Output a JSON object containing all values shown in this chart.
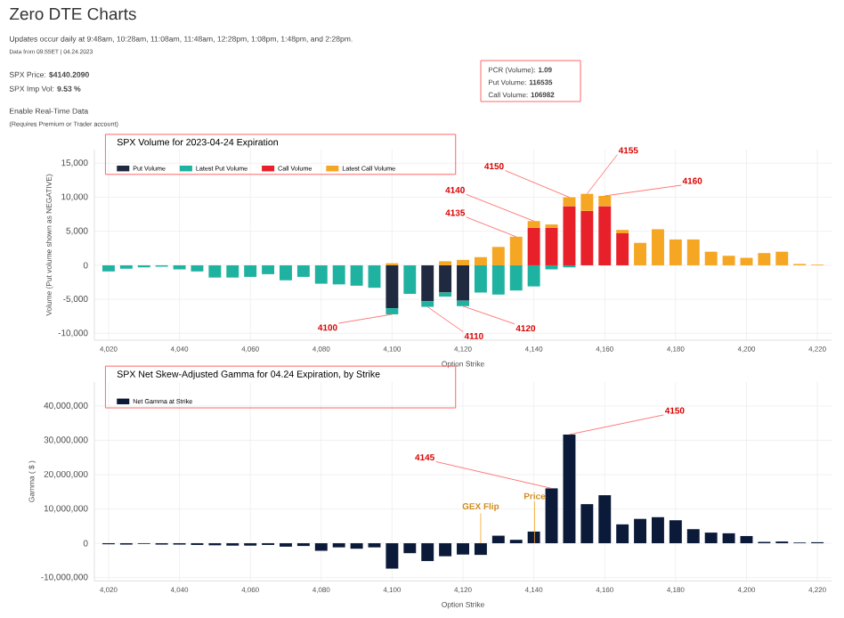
{
  "chart_data": [
    {
      "type": "other",
      "title": "Zero DTE Charts",
      "annotations": [
        "Updates occur daily at 9:48am, 10:28am, 11:08am, 11:48am, 12:28pm, 1:08pm, 1:48pm, and 2:28pm.",
        "Data from 09:55ET | 04.24.2023",
        "SPX Price: **$4140.2090**",
        "SPX Imp Vol: **9.53 %**",
        "Enable Real-Time Data",
        "(Requires Premium or Trader account)",
        "PCR (Volume): **1.09**",
        "Put Volume: **116535**",
        "Call Volume: **106982**"
      ]
    },
    {
      "type": "bar",
      "stacked": true,
      "title": "SPX Volume for 2023-04-24 Expiration",
      "xlabel": "Option Strike",
      "ylabel": "Volume (Put volume shown as NEGATIVE)",
      "x": [
        4020,
        4025,
        4030,
        4035,
        4040,
        4045,
        4050,
        4055,
        4060,
        4065,
        4070,
        4075,
        4080,
        4085,
        4090,
        4095,
        4100,
        4105,
        4110,
        4115,
        4120,
        4125,
        4130,
        4135,
        4140,
        4145,
        4150,
        4155,
        4160,
        4165,
        4170,
        4175,
        4180,
        4185,
        4190,
        4195,
        4200,
        4205,
        4210,
        4215,
        4220
      ],
      "series": [
        {
          "name": "Put Volume",
          "color": "#1f2940",
          "values": [
            null,
            null,
            null,
            null,
            null,
            null,
            null,
            null,
            null,
            null,
            null,
            null,
            null,
            null,
            null,
            null,
            -6300,
            null,
            -5300,
            -4000,
            -5200,
            null,
            null,
            null,
            null,
            null,
            null,
            null,
            null,
            null,
            null,
            null,
            null,
            null,
            null,
            null,
            null,
            null,
            null,
            null,
            null
          ]
        },
        {
          "name": "Latest Put Volume",
          "color": "#20b2a0",
          "values": [
            -900,
            -500,
            -300,
            -200,
            -600,
            -900,
            -1800,
            -1800,
            -1700,
            -1300,
            -2200,
            -1700,
            -2700,
            -2800,
            -3000,
            -3300,
            -900,
            -4200,
            -800,
            -600,
            -800,
            -4000,
            -4300,
            -3700,
            -3100,
            -600,
            -300,
            null,
            null,
            null,
            null,
            null,
            null,
            null,
            null,
            null,
            null,
            null,
            null,
            null,
            null
          ]
        },
        {
          "name": "Call Volume",
          "color": "#e8202a",
          "values": [
            null,
            null,
            null,
            null,
            null,
            null,
            null,
            null,
            null,
            null,
            null,
            null,
            null,
            null,
            null,
            null,
            null,
            null,
            null,
            null,
            null,
            null,
            null,
            null,
            5500,
            5500,
            8700,
            8000,
            8700,
            4700,
            null,
            null,
            null,
            null,
            null,
            null,
            null,
            null,
            null,
            null,
            null
          ]
        },
        {
          "name": "Latest Call Volume",
          "color": "#f5a623",
          "values": [
            null,
            null,
            null,
            null,
            null,
            null,
            null,
            null,
            null,
            null,
            null,
            null,
            null,
            null,
            null,
            null,
            300,
            null,
            null,
            600,
            800,
            1200,
            2700,
            4200,
            1000,
            500,
            1300,
            2500,
            1500,
            500,
            3300,
            5300,
            3800,
            3800,
            2000,
            1400,
            1100,
            1800,
            2000,
            200,
            100
          ]
        }
      ],
      "xlim": [
        4016,
        4224
      ],
      "ylim": [
        -11000,
        17000
      ],
      "xticks": [
        {
          "value": 4020,
          "label": "4,020"
        },
        {
          "value": 4040,
          "label": "4,040"
        },
        {
          "value": 4060,
          "label": "4,060"
        },
        {
          "value": 4080,
          "label": "4,080"
        },
        {
          "value": 4100,
          "label": "4,100"
        },
        {
          "value": 4120,
          "label": "4,120"
        },
        {
          "value": 4140,
          "label": "4,140"
        },
        {
          "value": 4160,
          "label": "4,160"
        },
        {
          "value": 4180,
          "label": "4,180"
        },
        {
          "value": 4200,
          "label": "4,200"
        },
        {
          "value": 4220,
          "label": "4,220"
        }
      ],
      "yticks": [
        {
          "value": -10000,
          "label": "-10,000"
        },
        {
          "value": -5000,
          "label": "-5,000"
        },
        0,
        {
          "value": 5000,
          "label": "5,000"
        },
        {
          "value": 10000,
          "label": "10,000"
        },
        {
          "value": 15000,
          "label": "15,000"
        }
      ],
      "grid": true,
      "legend": "top left",
      "annotations": [
        {
          "text": "4100",
          "x": 4100,
          "y": -7200
        },
        {
          "text": "4110",
          "x": 4110,
          "y": -6100
        },
        {
          "text": "4120",
          "x": 4120,
          "y": -6000
        },
        {
          "text": "4135",
          "x": 4135,
          "y": 4200
        },
        {
          "text": "4140",
          "x": 4140,
          "y": 6500
        },
        {
          "text": "4150",
          "x": 4150,
          "y": 10000
        },
        {
          "text": "4155",
          "x": 4155,
          "y": 10500
        },
        {
          "text": "4160",
          "x": 4160,
          "y": 10200
        }
      ]
    },
    {
      "type": "bar",
      "title": "SPX Net Skew-Adjusted Gamma for 04.24 Expiration, by Strike",
      "xlabel": "Option Strike",
      "ylabel": "Gamma ( $ )",
      "x": [
        4020,
        4025,
        4030,
        4035,
        4040,
        4045,
        4050,
        4055,
        4060,
        4065,
        4070,
        4075,
        4080,
        4085,
        4090,
        4095,
        4100,
        4105,
        4110,
        4115,
        4120,
        4125,
        4130,
        4135,
        4140,
        4145,
        4150,
        4155,
        4160,
        4165,
        4170,
        4175,
        4180,
        4185,
        4190,
        4195,
        4200,
        4205,
        4210,
        4215,
        4220
      ],
      "series": [
        {
          "name": "Net Gamma at Strike",
          "color": "#0c1a3a",
          "values": [
            -300000,
            -400000,
            -200000,
            -400000,
            -400000,
            -500000,
            -600000,
            -700000,
            -700000,
            -500000,
            -1000000,
            -800000,
            -2200000,
            -1200000,
            -1600000,
            -1200000,
            -7400000,
            -2900000,
            -5200000,
            -3800000,
            -3300000,
            -3400000,
            2200000,
            1000000,
            3400000,
            16000000,
            31700000,
            11400000,
            14000000,
            5500000,
            7100000,
            7600000,
            6700000,
            4100000,
            3100000,
            2900000,
            2100000,
            400000,
            500000,
            200000,
            300000
          ]
        }
      ],
      "xlim": [
        4016,
        4224
      ],
      "ylim": [
        -11000000,
        47000000
      ],
      "xticks": [
        {
          "value": 4020,
          "label": "4,020"
        },
        {
          "value": 4040,
          "label": "4,040"
        },
        {
          "value": 4060,
          "label": "4,060"
        },
        {
          "value": 4080,
          "label": "4,080"
        },
        {
          "value": 4100,
          "label": "4,100"
        },
        {
          "value": 4120,
          "label": "4,120"
        },
        {
          "value": 4140,
          "label": "4,140"
        },
        {
          "value": 4160,
          "label": "4,160"
        },
        {
          "value": 4180,
          "label": "4,180"
        },
        {
          "value": 4200,
          "label": "4,200"
        },
        {
          "value": 4220,
          "label": "4,220"
        }
      ],
      "yticks": [
        {
          "value": -10000000,
          "label": "-10,000,000"
        },
        0,
        {
          "value": 10000000,
          "label": "10,000,000"
        },
        {
          "value": 20000000,
          "label": "20,000,000"
        },
        {
          "value": 30000000,
          "label": "30,000,000"
        },
        {
          "value": 40000000,
          "label": "40,000,000"
        }
      ],
      "grid": true,
      "legend": "top left",
      "ref_lines": [
        {
          "axis": "x",
          "value": 4125,
          "label": "GEX Flip",
          "color": "#f5a623"
        },
        {
          "axis": "x",
          "value": 4140.209,
          "label": "Price",
          "color": "#f5a623"
        }
      ],
      "annotations": [
        {
          "text": "4145",
          "x": 4145,
          "y": 16000000
        },
        {
          "text": "4150",
          "x": 4150,
          "y": 31700000
        }
      ]
    }
  ]
}
